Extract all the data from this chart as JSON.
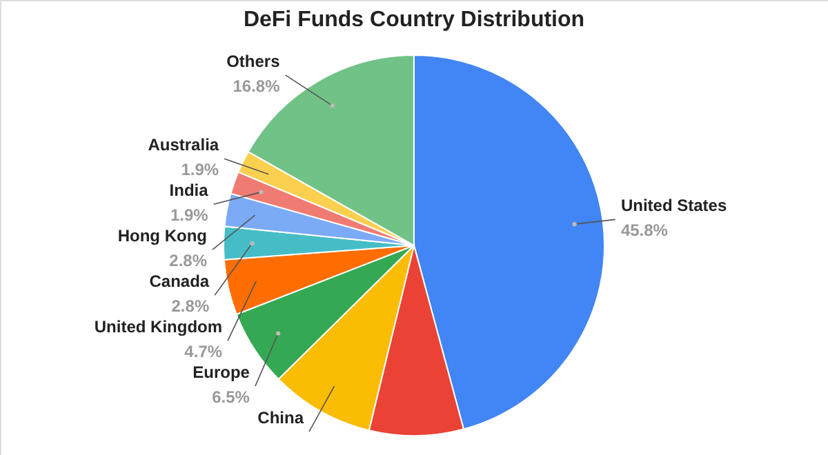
{
  "chart_data": {
    "type": "pie",
    "title": "DeFi Funds Country Distribution",
    "categories": [
      "United States",
      null,
      "China",
      "Europe",
      "United Kingdom",
      "Canada",
      "Hong Kong",
      "India",
      "Australia",
      "Others"
    ],
    "values": [
      45.8,
      8.0,
      8.8,
      6.5,
      4.7,
      2.8,
      2.8,
      1.9,
      1.9,
      16.8
    ],
    "colors": [
      "#4285f4",
      "#ea4335",
      "#fbbc04",
      "#34a853",
      "#ff6d01",
      "#46bdc6",
      "#7baaf7",
      "#f07b72",
      "#fcd04f",
      "#71c287"
    ],
    "value_labels": [
      "45.8%",
      null,
      null,
      "6.5%",
      "4.7%",
      "2.8%",
      "2.8%",
      "1.9%",
      "1.9%",
      "16.8%"
    ]
  }
}
